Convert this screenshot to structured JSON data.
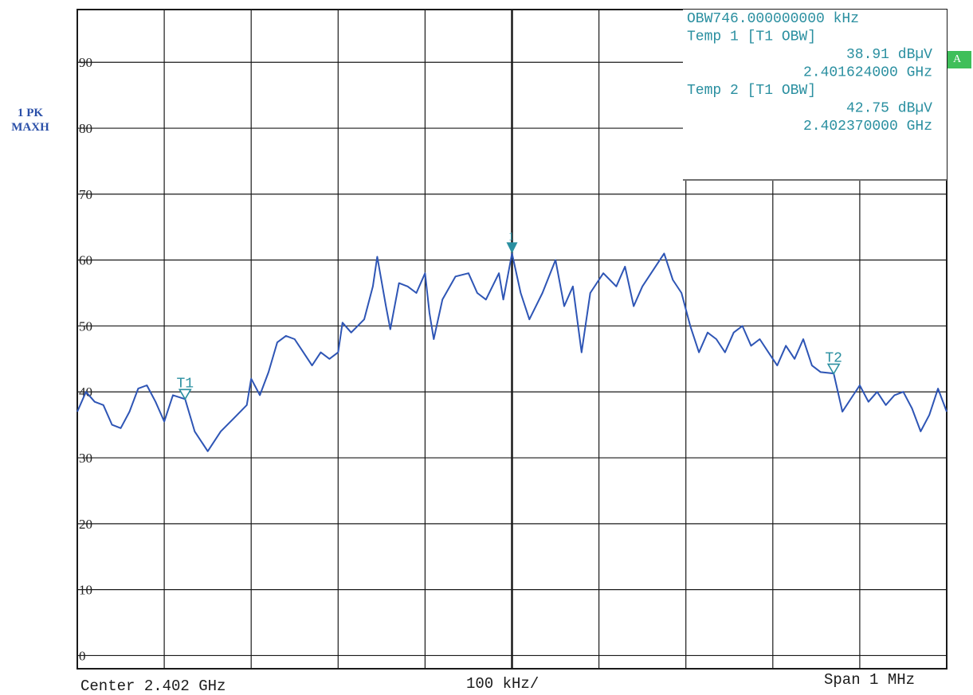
{
  "trace_label": {
    "line1": "1 PK",
    "line2": "MAXH"
  },
  "a_badge": "A",
  "readout": [
    "OBW746.000000000 kHz",
    "Temp 1 [T1 OBW]",
    "38.91 dBµV",
    "2.401624000 GHz",
    "Temp 2 [T1 OBW]",
    "42.75 dBµV",
    "2.402370000 GHz"
  ],
  "footer": {
    "center": "Center 2.402 GHz",
    "div": "100 kHz/",
    "span": "Span 1 MHz"
  },
  "colors": {
    "trace": "#2e55b5",
    "marker": "#2a8fa0",
    "grid": "#1a1a1a",
    "readout": "#2a8fa0",
    "badge": "#3fbf5a"
  },
  "chart_data": {
    "type": "line",
    "ylim": [
      -2,
      98
    ],
    "y_ticks": [
      0,
      10,
      20,
      30,
      40,
      50,
      60,
      70,
      80,
      90
    ],
    "y_tick_labels": [
      "0",
      "10",
      "20",
      "30",
      "40",
      "50",
      "60",
      "70",
      "80",
      "90"
    ],
    "xlim": [
      2.4015,
      2.4025
    ],
    "x_unit": "GHz",
    "grid": true,
    "series": [
      {
        "points": [
          [
            2.4015,
            37.0
          ],
          [
            2.40151,
            40.0
          ],
          [
            2.40152,
            38.5
          ],
          [
            2.40153,
            38.0
          ],
          [
            2.40154,
            35.0
          ],
          [
            2.40155,
            34.5
          ],
          [
            2.40156,
            37.0
          ],
          [
            2.40157,
            40.5
          ],
          [
            2.40158,
            41.0
          ],
          [
            2.40159,
            38.5
          ],
          [
            2.4016,
            35.5
          ],
          [
            2.40161,
            39.5
          ],
          [
            2.401624,
            38.9
          ],
          [
            2.401635,
            34.0
          ],
          [
            2.40165,
            31.0
          ],
          [
            2.401665,
            34.0
          ],
          [
            2.40168,
            36.0
          ],
          [
            2.401695,
            38.0
          ],
          [
            2.4017,
            42.0
          ],
          [
            2.40171,
            39.5
          ],
          [
            2.40172,
            43.0
          ],
          [
            2.40173,
            47.5
          ],
          [
            2.40174,
            48.5
          ],
          [
            2.40175,
            48.0
          ],
          [
            2.40176,
            46.0
          ],
          [
            2.40177,
            44.0
          ],
          [
            2.40178,
            46.0
          ],
          [
            2.40179,
            45.0
          ],
          [
            2.4018,
            46.0
          ],
          [
            2.401805,
            50.5
          ],
          [
            2.401815,
            49.0
          ],
          [
            2.40183,
            51.0
          ],
          [
            2.40184,
            56.0
          ],
          [
            2.401845,
            60.5
          ],
          [
            2.401855,
            53.0
          ],
          [
            2.40186,
            49.5
          ],
          [
            2.40187,
            56.5
          ],
          [
            2.40188,
            56.0
          ],
          [
            2.40189,
            55.0
          ],
          [
            2.4019,
            58.0
          ],
          [
            2.401905,
            52.0
          ],
          [
            2.40191,
            48.0
          ],
          [
            2.40192,
            54.0
          ],
          [
            2.401935,
            57.5
          ],
          [
            2.40195,
            58.0
          ],
          [
            2.40196,
            55.0
          ],
          [
            2.40197,
            54.0
          ],
          [
            2.401985,
            58.0
          ],
          [
            2.40199,
            54.0
          ],
          [
            2.402,
            61.0
          ],
          [
            2.40201,
            55.0
          ],
          [
            2.40202,
            51.0
          ],
          [
            2.402035,
            55.0
          ],
          [
            2.40205,
            60.0
          ],
          [
            2.40206,
            53.0
          ],
          [
            2.40207,
            56.0
          ],
          [
            2.40208,
            46.0
          ],
          [
            2.40209,
            55.0
          ],
          [
            2.402105,
            58.0
          ],
          [
            2.40212,
            56.0
          ],
          [
            2.40213,
            59.0
          ],
          [
            2.40214,
            53.0
          ],
          [
            2.40215,
            56.0
          ],
          [
            2.402165,
            59.0
          ],
          [
            2.402175,
            61.0
          ],
          [
            2.402185,
            57.0
          ],
          [
            2.402195,
            55.0
          ],
          [
            2.402205,
            50.0
          ],
          [
            2.402215,
            46.0
          ],
          [
            2.402225,
            49.0
          ],
          [
            2.402235,
            48.0
          ],
          [
            2.402245,
            46.0
          ],
          [
            2.402255,
            49.0
          ],
          [
            2.402265,
            50.0
          ],
          [
            2.402275,
            47.0
          ],
          [
            2.402285,
            48.0
          ],
          [
            2.402295,
            46.0
          ],
          [
            2.402305,
            44.0
          ],
          [
            2.402315,
            47.0
          ],
          [
            2.402325,
            45.0
          ],
          [
            2.402335,
            48.0
          ],
          [
            2.402345,
            44.0
          ],
          [
            2.402355,
            43.0
          ],
          [
            2.40237,
            42.8
          ],
          [
            2.40238,
            37.0
          ],
          [
            2.40239,
            39.0
          ],
          [
            2.4024,
            41.0
          ],
          [
            2.40241,
            38.5
          ],
          [
            2.40242,
            40.0
          ],
          [
            2.40243,
            38.0
          ],
          [
            2.40244,
            39.5
          ],
          [
            2.40245,
            40.0
          ],
          [
            2.40246,
            37.5
          ],
          [
            2.40247,
            34.0
          ],
          [
            2.40248,
            36.5
          ],
          [
            2.40249,
            40.5
          ],
          [
            2.4025,
            37.0
          ]
        ]
      }
    ],
    "markers": [
      {
        "label": "T1",
        "x": 2.401624,
        "y": 38.91
      },
      {
        "label": "T2",
        "x": 2.40237,
        "y": 42.75
      },
      {
        "label": "1",
        "x": 2.402,
        "y": 61.0
      }
    ]
  }
}
